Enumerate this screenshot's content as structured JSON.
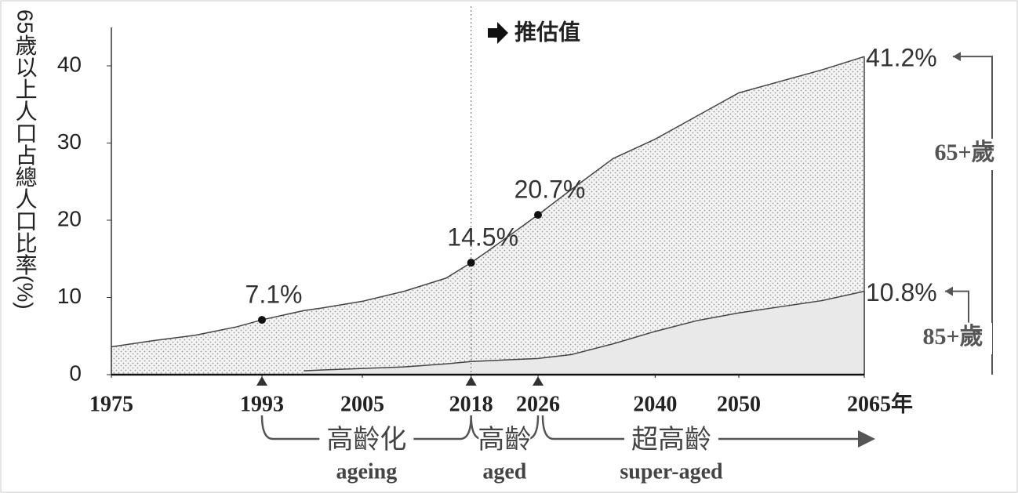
{
  "chart_data": {
    "type": "area",
    "y_label": "65歲以上人口占總人口比率(%)",
    "projection_label": "推估值",
    "projection_start": 2018,
    "x": [
      1975,
      1980,
      1985,
      1990,
      1993,
      1998,
      2000,
      2005,
      2010,
      2015,
      2018,
      2020,
      2026,
      2030,
      2035,
      2040,
      2045,
      2050,
      2055,
      2060,
      2065
    ],
    "series": [
      {
        "name": "65+歲",
        "color": "#444444",
        "values": [
          3.6,
          4.4,
          5.1,
          6.2,
          7.1,
          8.3,
          8.6,
          9.5,
          10.8,
          12.5,
          14.5,
          16.0,
          20.7,
          24.0,
          28.0,
          30.5,
          33.5,
          36.5,
          38.0,
          39.5,
          41.2
        ],
        "value_labels": [
          null,
          null,
          null,
          null,
          "7.1%",
          null,
          null,
          null,
          null,
          null,
          "14.5%",
          null,
          "20.7%",
          null,
          null,
          null,
          null,
          null,
          null,
          null,
          "41.2%"
        ]
      },
      {
        "name": "85+歲",
        "color": "#444444",
        "values": [
          null,
          null,
          null,
          null,
          null,
          0.5,
          0.6,
          0.8,
          1.0,
          1.4,
          1.7,
          1.8,
          2.1,
          2.6,
          4.0,
          5.6,
          7.0,
          8.0,
          8.8,
          9.6,
          10.8
        ],
        "value_labels": [
          null,
          null,
          null,
          null,
          null,
          null,
          null,
          null,
          null,
          null,
          null,
          null,
          null,
          null,
          null,
          null,
          null,
          null,
          null,
          null,
          "10.8%"
        ]
      }
    ],
    "xlim": [
      1975,
      2065
    ],
    "xticks": [
      1975,
      1993,
      2005,
      2018,
      2026,
      2040,
      2050,
      {
        "value": 2065,
        "label": "2065年"
      }
    ],
    "ylim": [
      0,
      45
    ],
    "yticks": [
      0,
      10,
      20,
      30,
      40
    ],
    "phases": [
      {
        "name": "高齡化",
        "sublabel": "ageing",
        "start": 1993
      },
      {
        "name": "高齡",
        "sublabel": "aged",
        "start": 2018
      },
      {
        "name": "超高齡",
        "sublabel": "super-aged",
        "start": 2026
      }
    ]
  }
}
